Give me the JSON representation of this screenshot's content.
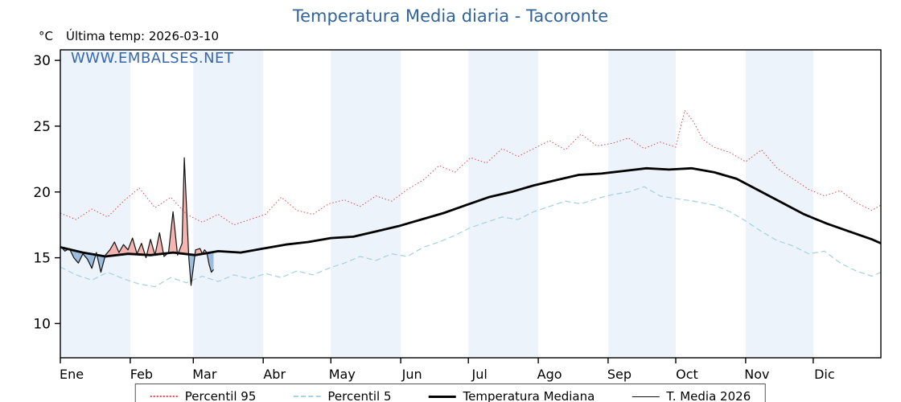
{
  "header": {
    "title": "Temperatura Media diaria - Tacoronte",
    "y_axis_unit": "°C",
    "last_temp": "Última temp: 2026-03-10",
    "watermark": "WWW.EMBALSES.NET"
  },
  "legend": {
    "items": [
      {
        "label": "Percentil 95"
      },
      {
        "label": "Percentil 5"
      },
      {
        "label": "Temperatura Mediana"
      },
      {
        "label": "T. Media 2026"
      }
    ]
  },
  "chart_data": {
    "type": "line",
    "title": "Temperatura Media diaria - Tacoronte",
    "xlabel": "",
    "ylabel": "°C",
    "x_unit": "day of year",
    "categories": [
      "Ene",
      "Feb",
      "Mar",
      "Abr",
      "May",
      "Jun",
      "Jul",
      "Ago",
      "Sep",
      "Oct",
      "Nov",
      "Dic"
    ],
    "month_start_days": [
      1,
      32,
      60,
      91,
      121,
      152,
      182,
      213,
      244,
      274,
      305,
      335
    ],
    "ylim": [
      7.4,
      30.8
    ],
    "yticks": [
      10,
      15,
      20,
      25,
      30
    ],
    "grid": false,
    "legend_position": "bottom",
    "band_color": "#edf3fb",
    "annotations": [
      "Última temp: 2026-03-10",
      "WWW.EMBALSES.NET"
    ],
    "series": [
      {
        "name": "Percentil 95",
        "color": "#e04b4b",
        "style": "dotted",
        "width": 1,
        "x": [
          1,
          8,
          15,
          22,
          29,
          36,
          43,
          50,
          57,
          64,
          71,
          78,
          85,
          92,
          99,
          106,
          113,
          120,
          127,
          134,
          141,
          148,
          155,
          162,
          169,
          176,
          183,
          190,
          197,
          204,
          211,
          218,
          225,
          232,
          239,
          246,
          253,
          260,
          267,
          274,
          278,
          282,
          286,
          291,
          298,
          305,
          312,
          319,
          326,
          333,
          340,
          347,
          354,
          361,
          365
        ],
        "y": [
          18.4,
          17.9,
          18.7,
          18.1,
          19.3,
          20.3,
          18.8,
          19.6,
          18.3,
          17.7,
          18.3,
          17.5,
          17.9,
          18.3,
          19.6,
          18.6,
          18.3,
          19.1,
          19.4,
          18.9,
          19.7,
          19.3,
          20.2,
          20.9,
          22.0,
          21.5,
          22.6,
          22.2,
          23.3,
          22.7,
          23.3,
          23.9,
          23.2,
          24.4,
          23.5,
          23.7,
          24.1,
          23.3,
          23.8,
          23.4,
          26.2,
          25.3,
          24.0,
          23.4,
          23.0,
          22.3,
          23.2,
          21.8,
          21.0,
          20.2,
          19.7,
          20.1,
          19.2,
          18.6,
          19.0
        ]
      },
      {
        "name": "Percentil 5",
        "color": "#a8d3e4",
        "style": "dashed",
        "width": 1.3,
        "x": [
          1,
          8,
          15,
          22,
          29,
          36,
          43,
          50,
          57,
          64,
          71,
          78,
          85,
          92,
          99,
          106,
          113,
          120,
          127,
          134,
          141,
          148,
          155,
          162,
          169,
          176,
          183,
          190,
          197,
          204,
          211,
          218,
          225,
          232,
          239,
          246,
          253,
          260,
          267,
          274,
          282,
          291,
          298,
          305,
          312,
          319,
          326,
          333,
          340,
          347,
          354,
          361,
          365
        ],
        "y": [
          14.3,
          13.7,
          13.3,
          13.9,
          13.4,
          13.0,
          12.8,
          13.5,
          13.1,
          13.6,
          13.2,
          13.7,
          13.4,
          13.8,
          13.5,
          14.0,
          13.7,
          14.2,
          14.6,
          15.1,
          14.8,
          15.3,
          15.1,
          15.8,
          16.2,
          16.7,
          17.3,
          17.7,
          18.1,
          17.9,
          18.5,
          18.9,
          19.3,
          19.1,
          19.5,
          19.8,
          20.0,
          20.4,
          19.7,
          19.5,
          19.3,
          19.0,
          18.5,
          17.8,
          17.0,
          16.3,
          15.9,
          15.3,
          15.5,
          14.6,
          14.0,
          13.6,
          13.9
        ]
      },
      {
        "name": "Temperatura Mediana",
        "color": "#000000",
        "style": "solid",
        "width": 2.8,
        "x": [
          1,
          11,
          21,
          31,
          41,
          51,
          61,
          71,
          81,
          91,
          101,
          111,
          121,
          131,
          141,
          151,
          161,
          171,
          181,
          191,
          201,
          211,
          221,
          231,
          241,
          251,
          261,
          271,
          281,
          291,
          301,
          311,
          321,
          331,
          341,
          351,
          361,
          365
        ],
        "y": [
          15.8,
          15.4,
          15.1,
          15.3,
          15.2,
          15.4,
          15.2,
          15.5,
          15.4,
          15.7,
          16.0,
          16.2,
          16.5,
          16.6,
          17.0,
          17.4,
          17.9,
          18.4,
          19.0,
          19.6,
          20.0,
          20.5,
          20.9,
          21.3,
          21.4,
          21.6,
          21.8,
          21.7,
          21.8,
          21.5,
          21.0,
          20.1,
          19.2,
          18.3,
          17.6,
          17.0,
          16.4,
          16.1
        ]
      },
      {
        "name": "T. Media 2026",
        "color": "#111111",
        "style": "solid",
        "width": 1.2,
        "fill_vs": "Temperatura Mediana",
        "fill_above": "#f3a8a2",
        "fill_below": "#8fb1d8",
        "x": [
          1,
          3,
          5,
          7,
          9,
          11,
          13,
          15,
          17,
          19,
          21,
          23,
          25,
          27,
          29,
          31,
          33,
          35,
          37,
          39,
          41,
          43,
          45,
          47,
          49,
          51,
          53,
          55,
          56,
          58,
          59,
          61,
          63,
          64,
          65,
          66,
          67,
          68,
          69
        ],
        "y": [
          15.9,
          15.5,
          15.7,
          15.0,
          14.6,
          15.3,
          14.9,
          14.2,
          15.4,
          13.9,
          15.2,
          15.6,
          16.2,
          15.4,
          16.0,
          15.6,
          16.5,
          15.3,
          16.1,
          15.0,
          16.4,
          15.2,
          16.9,
          15.1,
          15.4,
          18.5,
          15.2,
          16.1,
          22.6,
          15.0,
          12.9,
          15.6,
          15.7,
          15.3,
          15.6,
          15.4,
          14.5,
          13.9,
          14.1
        ]
      }
    ]
  }
}
